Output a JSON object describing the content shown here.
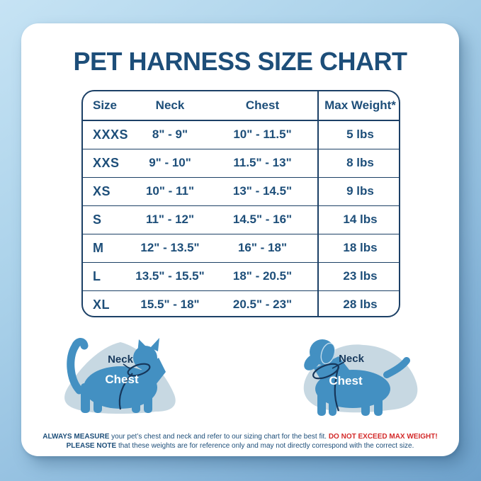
{
  "title": "PET HARNESS SIZE CHART",
  "chart_data": {
    "type": "table",
    "title": "PET HARNESS SIZE CHART",
    "columns": [
      "Size",
      "Neck",
      "Chest",
      "Max Weight*"
    ],
    "rows": [
      [
        "XXXS",
        "8\" - 9\"",
        "10\" - 11.5\"",
        "5 lbs"
      ],
      [
        "XXS",
        "9\" - 10\"",
        "11.5\" - 13\"",
        "8 lbs"
      ],
      [
        "XS",
        "10\" - 11\"",
        "13\" - 14.5\"",
        "9 lbs"
      ],
      [
        "S",
        "11\" - 12\"",
        "14.5\" - 16\"",
        "14 lbs"
      ],
      [
        "M",
        "12\" - 13.5\"",
        "16\" - 18\"",
        "18 lbs"
      ],
      [
        "L",
        "13.5\" - 15.5\"",
        "18\" - 20.5\"",
        "23 lbs"
      ],
      [
        "XL",
        "15.5\" - 18\"",
        "20.5\" - 23\"",
        "28 lbs"
      ]
    ]
  },
  "figures": {
    "cat": {
      "neck_label": "Neck",
      "chest_label": "Chest"
    },
    "dog": {
      "neck_label": "Neck",
      "chest_label": "Chest"
    }
  },
  "disclaimer": {
    "line1_bold": "ALWAYS MEASURE",
    "line1_text": " your pet’s chest and neck and refer to our sizing chart for the best fit. ",
    "line1_warning": "DO NOT EXCEED MAX WEIGHT!",
    "line2_bold": "PLEASE NOTE",
    "line2_text": " that these weights are for reference only and may not directly correspond with the correct size."
  },
  "colors": {
    "navy": "#1d4e79",
    "border_navy": "#1c4066",
    "warning_red": "#d32a2a",
    "pet_blue": "#4390c2",
    "blob_blue": "#c7d8e2",
    "card": "#ffffff",
    "bg_top": "#c6e3f4",
    "bg_bottom": "#6ea2cc"
  }
}
